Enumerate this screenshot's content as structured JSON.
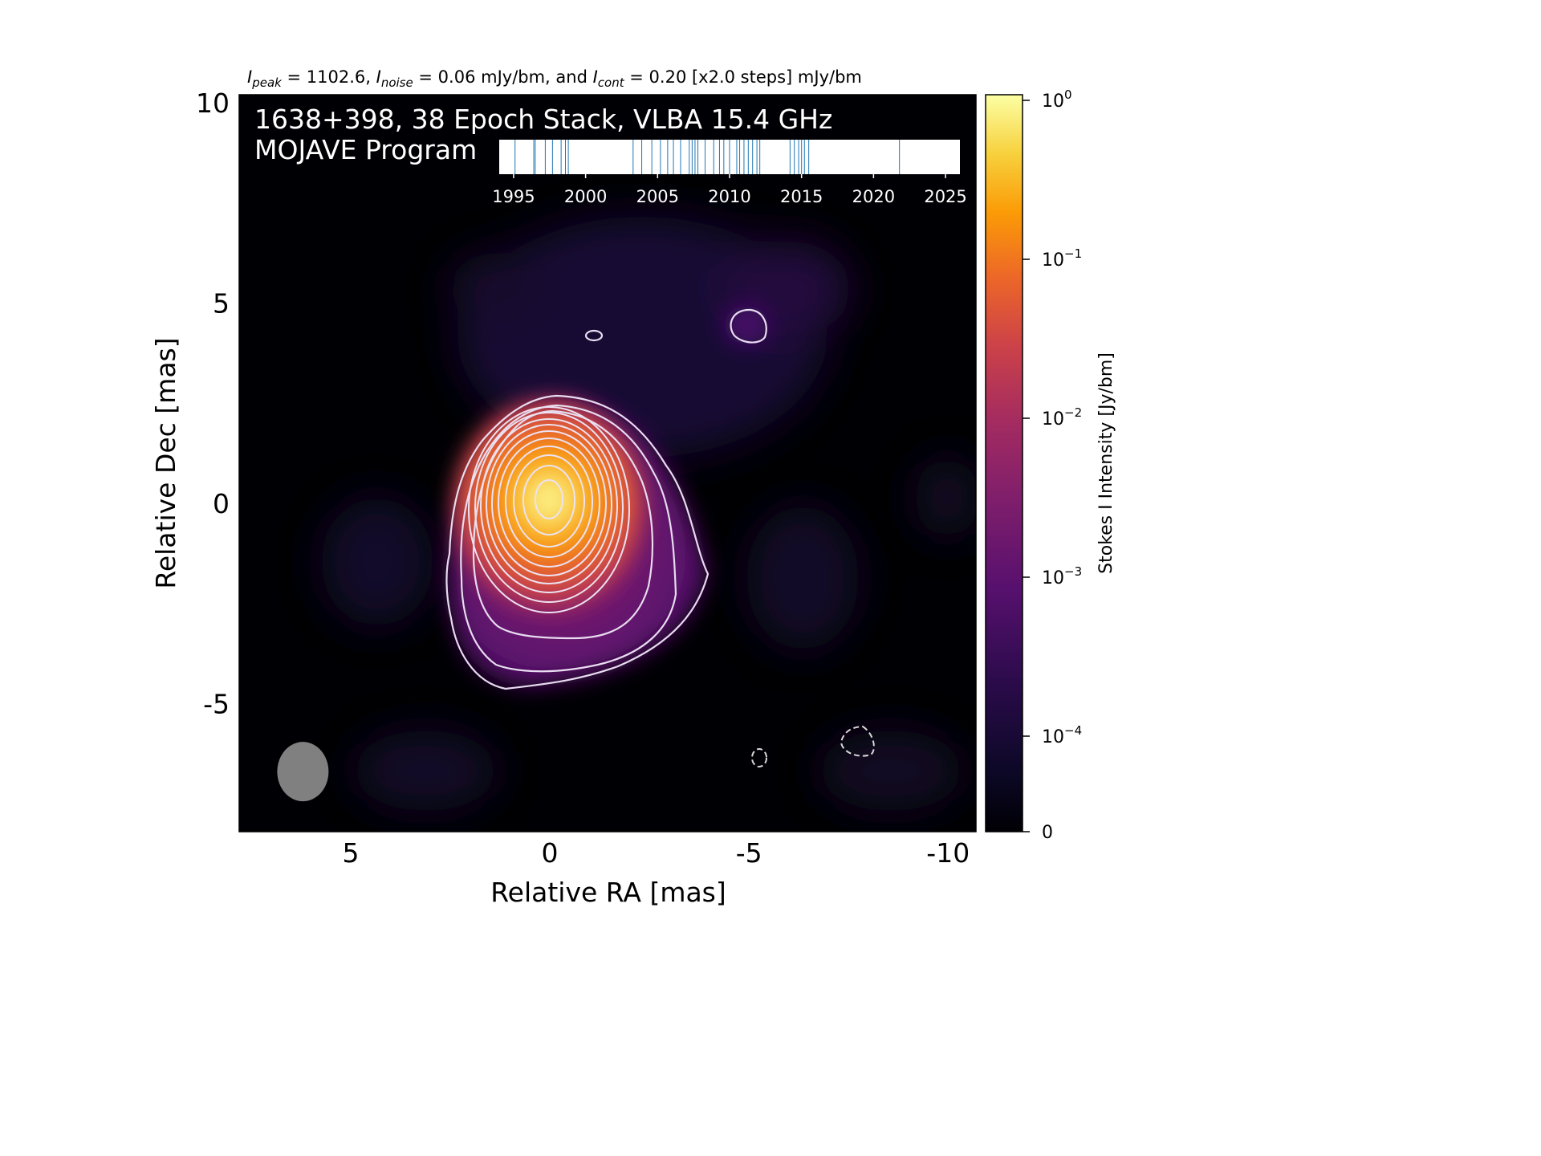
{
  "figure": {
    "header": {
      "peak_label": "I",
      "peak_sub": "peak",
      "peak_value": " = 1102.6, ",
      "noise_label": "I",
      "noise_sub": "noise",
      "noise_value": " = 0.06 mJy/bm, and ",
      "cont_label": "I",
      "cont_sub": "cont",
      "cont_value": " = 0.20 [x2.0 steps] mJy/bm"
    },
    "overlay": {
      "line1": "1638+398, 38 Epoch Stack, VLBA 15.4 GHz",
      "line2": "MOJAVE Program"
    },
    "xlabel": "Relative RA [mas]",
    "ylabel": "Relative Dec [mas]",
    "colorbar_label": "Stokes I Intensity [Jy/bm]"
  },
  "chart_data": [
    {
      "type": "heatmap",
      "title": "",
      "xlabel": "Relative RA [mas]",
      "ylabel": "Relative Dec [mas]",
      "xlim": [
        7.8,
        -10.7
      ],
      "ylim": [
        -8.2,
        10.2
      ],
      "x_ticks": [
        5,
        0,
        -5,
        -10
      ],
      "x_tick_labels": [
        "5",
        "0",
        "-5",
        "-10"
      ],
      "y_ticks": [
        10,
        5,
        0,
        -5
      ],
      "y_tick_labels": [
        "10",
        "5",
        "0",
        "-5"
      ],
      "source": {
        "ra": 0,
        "dec": 0
      },
      "peak_jy_per_beam": 1.1026,
      "noise_mjy_per_beam": 0.06,
      "contour_base_mjy_per_beam": 0.2,
      "contour_step_factor": 2.0,
      "beam": {
        "ra": 6.2,
        "dec": -6.7,
        "color": "#808080"
      },
      "colormap": "inferno",
      "colors": {
        "contour": "#e8dcf0",
        "beam": "#808080",
        "background": "#000004"
      }
    },
    {
      "type": "scatter",
      "title": "",
      "xlim": [
        1994,
        2026
      ],
      "x_ticks": [
        1995,
        2000,
        2005,
        2010,
        2015,
        2020,
        2025
      ],
      "x_tick_labels": [
        "1995",
        "2000",
        "2005",
        "2010",
        "2015",
        "2020",
        "2025"
      ],
      "epochs": [
        1995.1,
        1996.4,
        1996.5,
        1997.2,
        1997.7,
        1998.3,
        1998.6,
        1998.8,
        2003.3,
        2003.9,
        2004.6,
        2005.2,
        2005.7,
        2006.1,
        2006.6,
        2007.2,
        2007.4,
        2007.6,
        2007.8,
        2008.3,
        2008.9,
        2009.3,
        2009.6,
        2010.0,
        2010.5,
        2010.7,
        2011.0,
        2011.3,
        2011.6,
        2011.9,
        2012.1,
        2014.2,
        2014.5,
        2014.8,
        2015.0,
        2015.2,
        2015.5,
        2021.8
      ],
      "colors": {
        "tick": "#1f77b4"
      }
    },
    {
      "type": "heatmap",
      "title": "",
      "ylabel": "Stokes I Intensity [Jy/bm]",
      "scale": "symlog",
      "tick_labels": [
        {
          "value": 1.0,
          "base": "10",
          "exp": "0"
        },
        {
          "value": 0.1,
          "base": "10",
          "exp": "−1"
        },
        {
          "value": 0.01,
          "base": "10",
          "exp": "−2"
        },
        {
          "value": 0.001,
          "base": "10",
          "exp": "−3"
        },
        {
          "value": 0.0001,
          "base": "10",
          "exp": "−4"
        },
        {
          "value": 0,
          "base": "0",
          "exp": ""
        }
      ],
      "colormap": "inferno"
    }
  ]
}
